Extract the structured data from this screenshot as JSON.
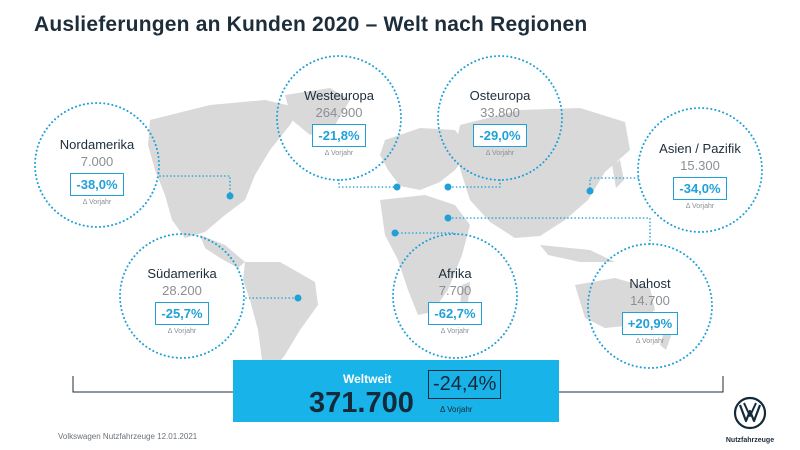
{
  "title": "Auslieferungen an Kunden 2020 – Welt nach Regionen",
  "delta_label": "Δ Vorjahr",
  "regions": [
    {
      "name": "Nordamerika",
      "count": "7.000",
      "change": "-38,0%"
    },
    {
      "name": "Westeuropa",
      "count": "264.900",
      "change": "-21,8%"
    },
    {
      "name": "Osteuropa",
      "count": "33.800",
      "change": "-29,0%"
    },
    {
      "name": "Asien / Pazifik",
      "count": "15.300",
      "change": "-34,0%"
    },
    {
      "name": "Südamerika",
      "count": "28.200",
      "change": "-25,7%"
    },
    {
      "name": "Afrika",
      "count": "7.700",
      "change": "-62,7%"
    },
    {
      "name": "Nahost",
      "count": "14.700",
      "change": "+20,9%"
    }
  ],
  "worldwide": {
    "label": "Weltweit",
    "count": "371.700",
    "change": "-24,4%",
    "delta_label": "Δ Vorjahr"
  },
  "footer": "Volkswagen Nutzfahrzeuge 12.01.2021",
  "logo": {
    "brand_text": "Nutzfahrzeuge",
    "icon": "vw-logo-icon"
  },
  "colors": {
    "accent": "#1fa1d8",
    "world_box": "#18b3e8",
    "map": "#d9d9d9",
    "text": "#1d2d3a"
  }
}
